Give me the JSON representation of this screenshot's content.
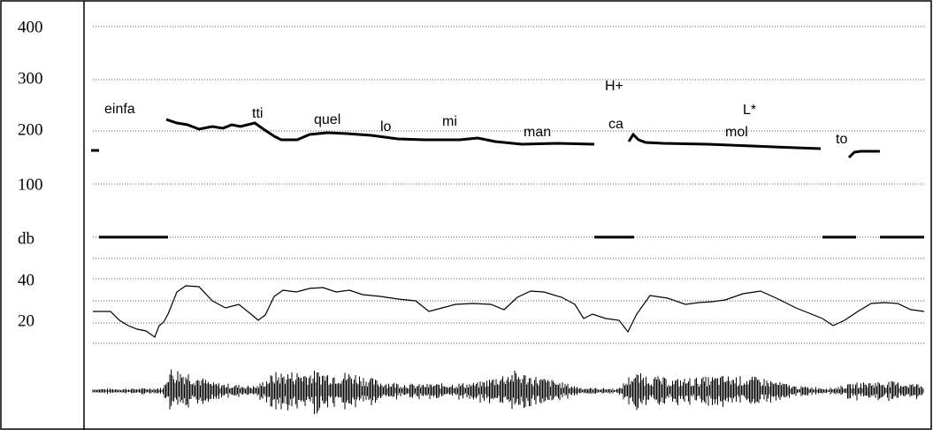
{
  "axis_labels": [
    "400",
    "300",
    "200",
    "100",
    "db",
    "40",
    "20"
  ],
  "syllables": [
    "einfa",
    "tti",
    "quel",
    "lo",
    "mi",
    "man",
    "ca",
    "mol",
    "to"
  ],
  "tones": [
    "H+",
    "L*"
  ]
}
